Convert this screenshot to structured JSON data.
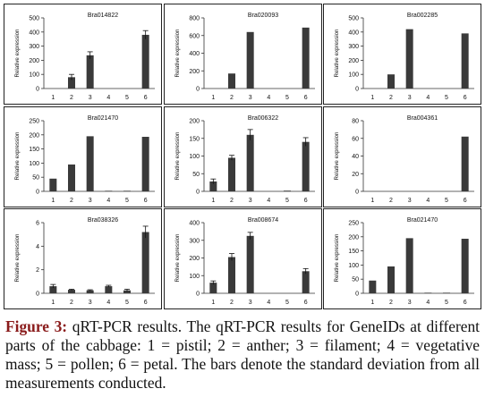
{
  "caption": {
    "label": "Figure 3:",
    "text": " qRT-PCR results. The qRT-PCR results for GeneIDs at different parts of the cabbage: 1 = pistil; 2 = anther; 3 = filament; 4 = vegetative mass; 5 = pollen; 6 = petal. The bars denote the standard deviation from all measurements conducted."
  },
  "chart_data": [
    {
      "type": "bar",
      "title": "Bra014822",
      "ylabel": "Relative expression",
      "categories": [
        "1",
        "2",
        "3",
        "4",
        "5",
        "6"
      ],
      "values": [
        0,
        80,
        235,
        0,
        0,
        380
      ],
      "errors": [
        0,
        20,
        25,
        0,
        0,
        30
      ],
      "ylim": [
        0,
        500
      ],
      "yticks": [
        0,
        100,
        200,
        300,
        400,
        500
      ]
    },
    {
      "type": "bar",
      "title": "Bra020093",
      "ylabel": "Relative expression",
      "categories": [
        "1",
        "2",
        "3",
        "4",
        "5",
        "6"
      ],
      "values": [
        0,
        170,
        640,
        0,
        0,
        690
      ],
      "errors": [
        0,
        0,
        0,
        0,
        0,
        0
      ],
      "ylim": [
        0,
        800
      ],
      "yticks": [
        0,
        200,
        400,
        600,
        800
      ]
    },
    {
      "type": "bar",
      "title": "Bra002285",
      "ylabel": "Relative expression",
      "categories": [
        "1",
        "2",
        "3",
        "4",
        "5",
        "6"
      ],
      "values": [
        0,
        100,
        420,
        0,
        0,
        390
      ],
      "errors": [
        0,
        0,
        0,
        0,
        0,
        0
      ],
      "ylim": [
        0,
        500
      ],
      "yticks": [
        0,
        100,
        200,
        300,
        400,
        500
      ]
    },
    {
      "type": "bar",
      "title": "Bra021470",
      "ylabel": "Relative expression",
      "categories": [
        "1",
        "2",
        "3",
        "4",
        "5",
        "6"
      ],
      "values": [
        45,
        95,
        195,
        2,
        2,
        193
      ],
      "errors": [
        0,
        0,
        0,
        0,
        0,
        0
      ],
      "ylim": [
        0,
        250
      ],
      "yticks": [
        0,
        50,
        100,
        150,
        200,
        250
      ]
    },
    {
      "type": "bar",
      "title": "Bra006322",
      "ylabel": "Relative expression",
      "categories": [
        "1",
        "2",
        "3",
        "4",
        "5",
        "6"
      ],
      "values": [
        28,
        95,
        160,
        0,
        2,
        140
      ],
      "errors": [
        7,
        7,
        15,
        0,
        0,
        12
      ],
      "ylim": [
        0,
        200
      ],
      "yticks": [
        0,
        50,
        100,
        150,
        200
      ]
    },
    {
      "type": "bar",
      "title": "Bra004361",
      "ylabel": "Relative expression",
      "categories": [
        "1",
        "2",
        "3",
        "4",
        "5",
        "6"
      ],
      "values": [
        0,
        0,
        0,
        0,
        0,
        62
      ],
      "errors": [
        0,
        0,
        0,
        0,
        0,
        0
      ],
      "ylim": [
        0,
        80
      ],
      "yticks": [
        0,
        20,
        40,
        60,
        80
      ]
    },
    {
      "type": "bar",
      "title": "Bra038326",
      "ylabel": "Relative expression",
      "categories": [
        "1",
        "2",
        "3",
        "4",
        "5",
        "6"
      ],
      "values": [
        0.6,
        0.3,
        0.25,
        0.6,
        0.25,
        5.2
      ],
      "errors": [
        0.15,
        0.05,
        0.05,
        0.08,
        0.1,
        0.5
      ],
      "ylim": [
        0,
        6
      ],
      "yticks": [
        0,
        2,
        4,
        6
      ]
    },
    {
      "type": "bar",
      "title": "Bra008674",
      "ylabel": "Relative expression",
      "categories": [
        "1",
        "2",
        "3",
        "4",
        "5",
        "6"
      ],
      "values": [
        60,
        205,
        325,
        0,
        0,
        125
      ],
      "errors": [
        10,
        20,
        20,
        0,
        0,
        15
      ],
      "ylim": [
        0,
        400
      ],
      "yticks": [
        0,
        100,
        200,
        300,
        400
      ]
    },
    {
      "type": "bar",
      "title": "Bra021470",
      "ylabel": "Relative expression",
      "categories": [
        "1",
        "2",
        "3",
        "4",
        "5",
        "6"
      ],
      "values": [
        45,
        95,
        195,
        2,
        2,
        193
      ],
      "errors": [
        0,
        0,
        0,
        0,
        0,
        0
      ],
      "ylim": [
        0,
        250
      ],
      "yticks": [
        0,
        50,
        100,
        150,
        200,
        250
      ]
    }
  ]
}
